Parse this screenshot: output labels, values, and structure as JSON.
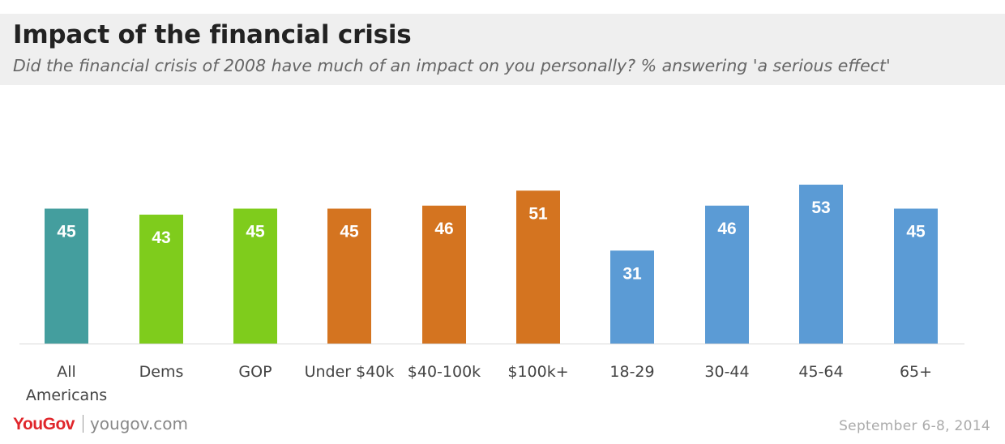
{
  "header": {
    "title": "Impact of the financial crisis",
    "subtitle": "Did the financial crisis of 2008 have much of an impact on you personally? % answering 'a serious effect'"
  },
  "footer": {
    "brand": "YouGov",
    "site": "yougov.com",
    "date": "September 6-8, 2014"
  },
  "chart_data": {
    "type": "bar",
    "title": "Impact of the financial crisis",
    "categories": [
      "All Americans",
      "Dems",
      "GOP",
      "Under $40k",
      "$40-100k",
      "$100k+",
      "18-29",
      "30-44",
      "45-64",
      "65+"
    ],
    "category_lines": [
      [
        "All",
        "Americans"
      ],
      [
        "Dems"
      ],
      [
        "GOP"
      ],
      [
        "Under $40k"
      ],
      [
        "$40-100k"
      ],
      [
        "$100k+"
      ],
      [
        "18-29"
      ],
      [
        "30-44"
      ],
      [
        "45-64"
      ],
      [
        "65+"
      ]
    ],
    "values": [
      45,
      43,
      45,
      45,
      46,
      51,
      31,
      46,
      53,
      45
    ],
    "colors": [
      "#449e9e",
      "#7fcc1c",
      "#7fcc1c",
      "#d47420",
      "#d47420",
      "#d47420",
      "#5b9bd5",
      "#5b9bd5",
      "#5b9bd5",
      "#5b9bd5"
    ],
    "ylim": [
      0,
      60
    ],
    "grid": false,
    "legend": "none",
    "xlabel": "",
    "ylabel": ""
  }
}
